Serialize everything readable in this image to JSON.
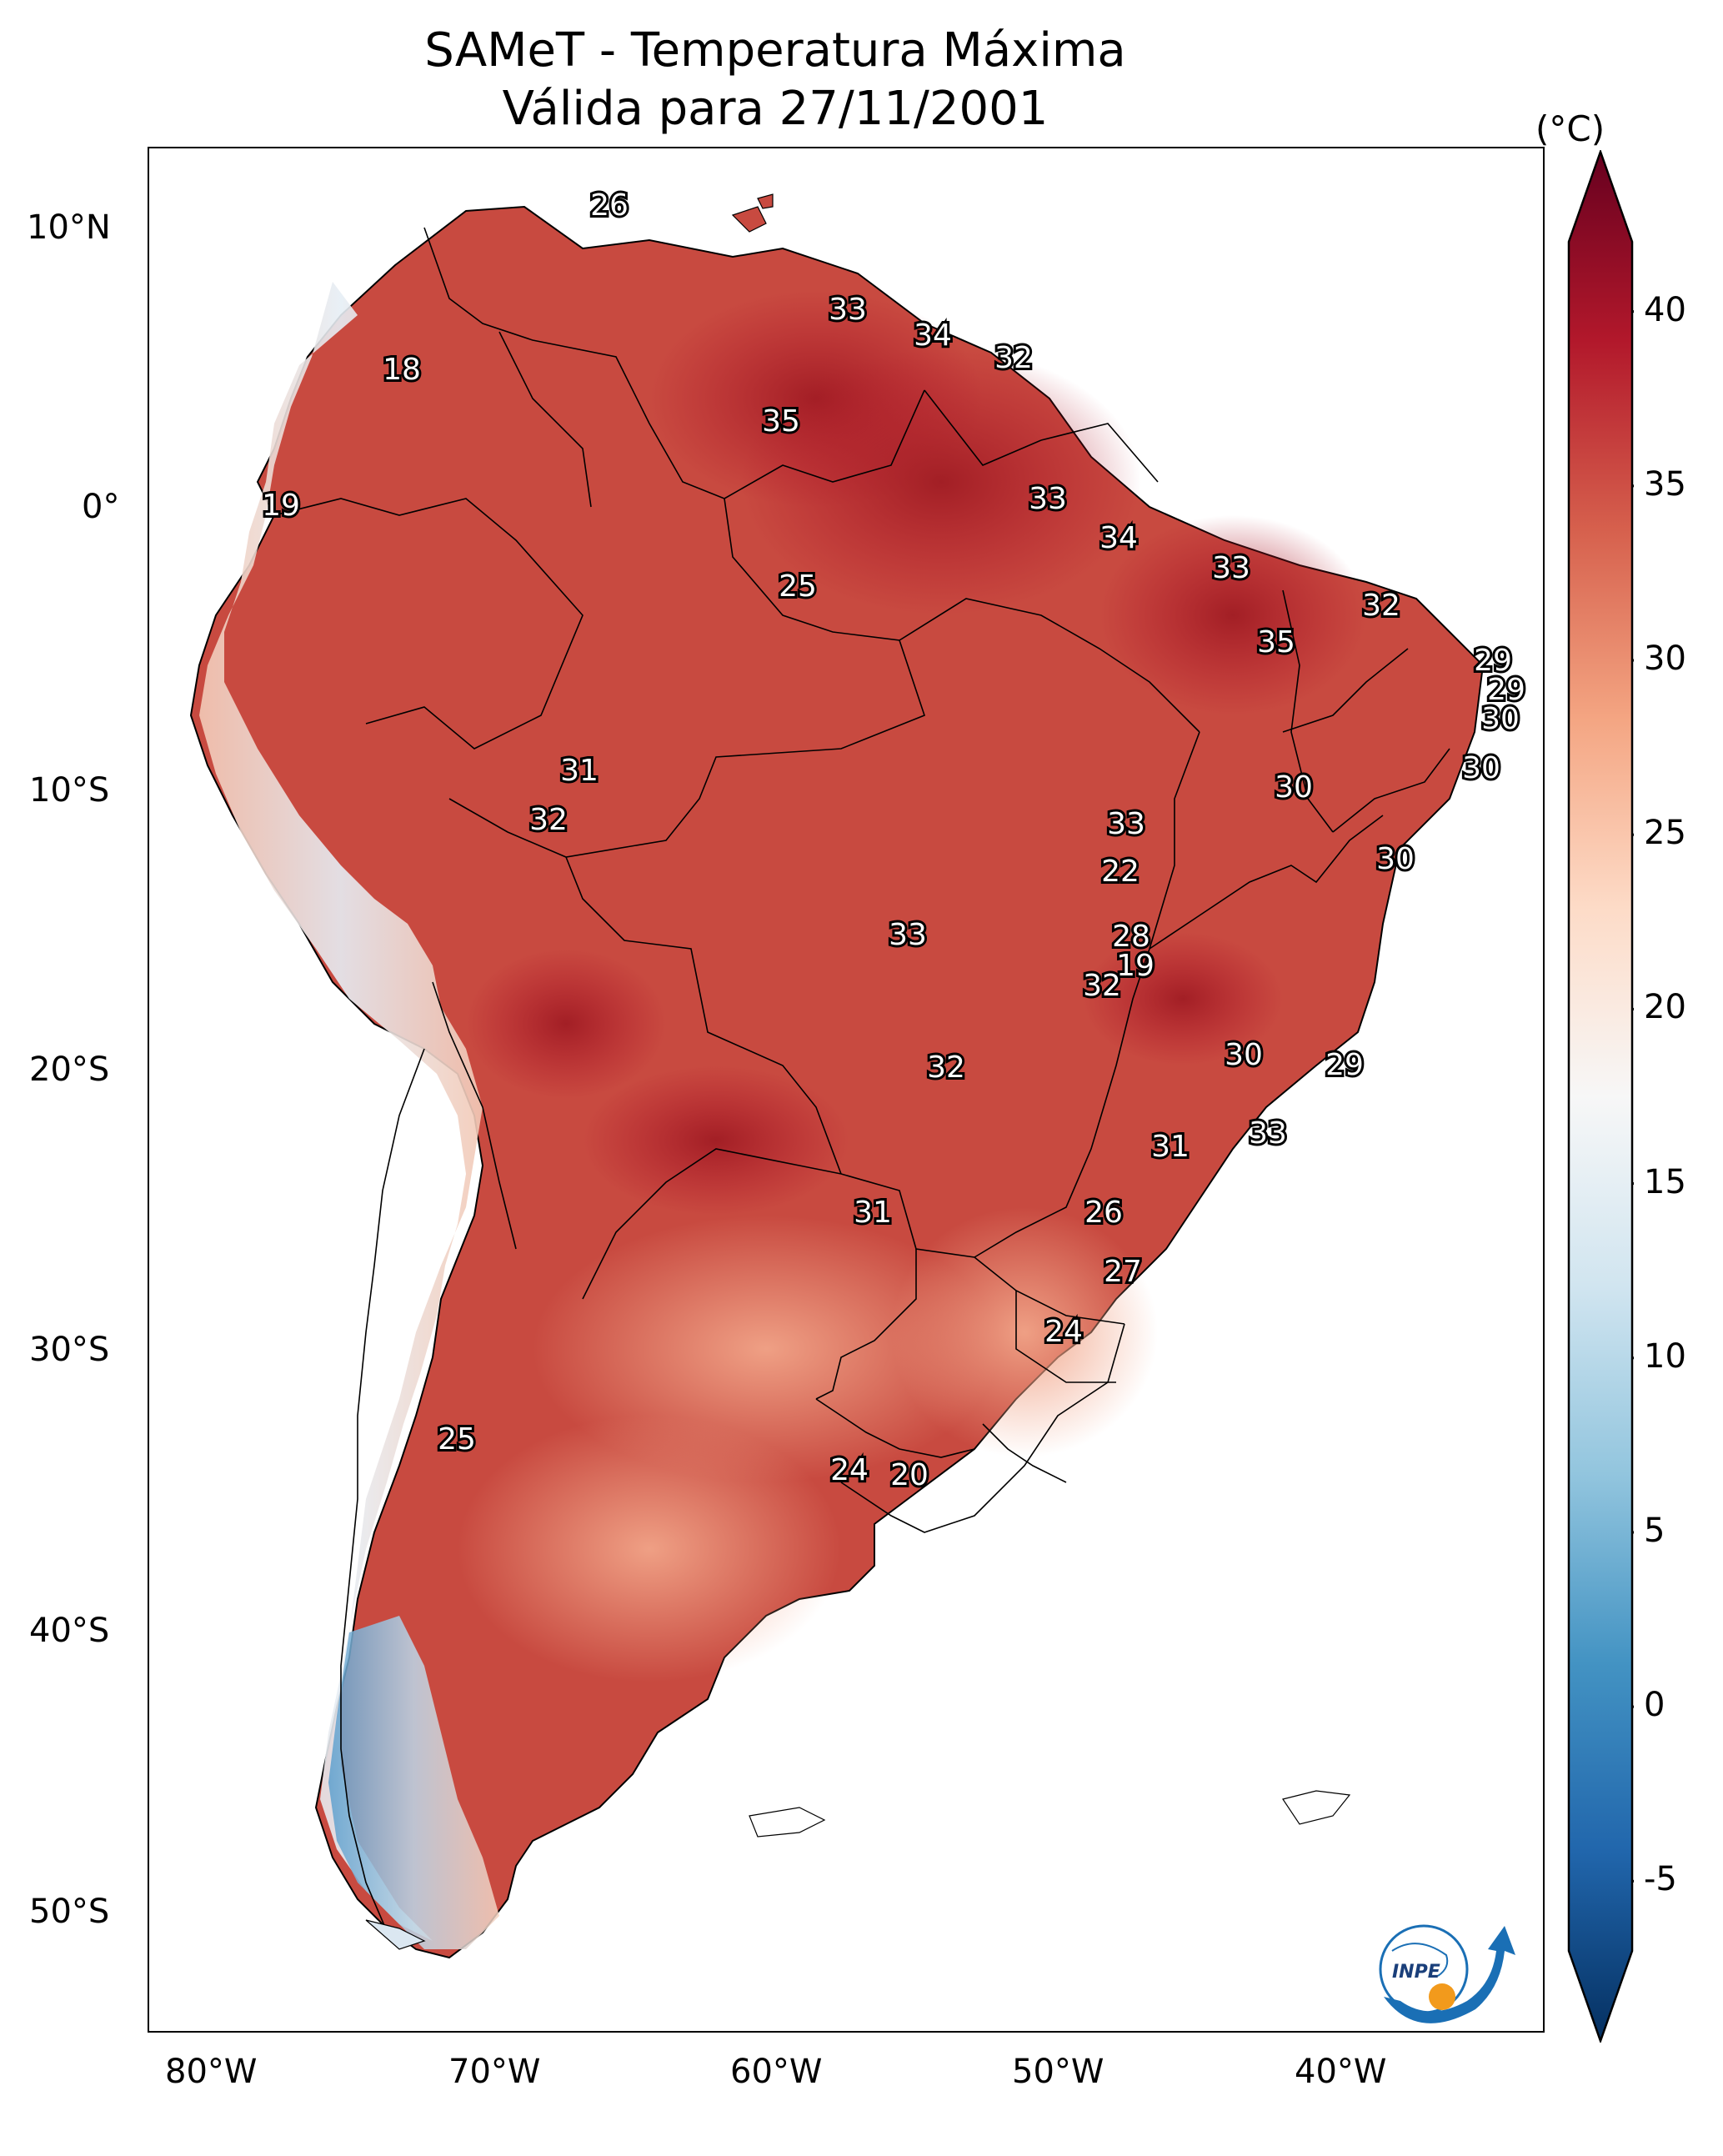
{
  "title": {
    "line1": "SAMeT - Temperatura Máxima",
    "line2": "Válida para 27/11/2001"
  },
  "colorbar": {
    "unit": "(°C)",
    "ticks": [
      "-5",
      "0",
      "5",
      "10",
      "15",
      "20",
      "25",
      "30",
      "35",
      "40"
    ],
    "min": -7,
    "max": 42,
    "colors": [
      "#053061",
      "#2166ac",
      "#4393c3",
      "#92c5de",
      "#d1e5f0",
      "#f7f7f7",
      "#fddbc7",
      "#f4a582",
      "#d6604d",
      "#b2182b",
      "#67001f"
    ]
  },
  "axes": {
    "lon_labels": [
      "80°W",
      "70°W",
      "60°W",
      "50°W",
      "40°W"
    ],
    "lat_labels": [
      "10°N",
      "0°",
      "10°S",
      "20°S",
      "30°S",
      "40°S",
      "50°S"
    ]
  },
  "logo_text": "INPE",
  "map": {
    "land_color": "#c84a40",
    "cool_color": "#e8f0f6",
    "cities": [
      {
        "v": "26"
      },
      {
        "v": "33"
      },
      {
        "v": "34"
      },
      {
        "v": "32"
      },
      {
        "v": "18"
      },
      {
        "v": "35"
      },
      {
        "v": "19"
      },
      {
        "v": "33"
      },
      {
        "v": "34"
      },
      {
        "v": "33"
      },
      {
        "v": "25"
      },
      {
        "v": "32"
      },
      {
        "v": "35"
      },
      {
        "v": "29"
      },
      {
        "v": "29"
      },
      {
        "v": "30"
      },
      {
        "v": "30"
      },
      {
        "v": "30"
      },
      {
        "v": "31"
      },
      {
        "v": "32"
      },
      {
        "v": "33"
      },
      {
        "v": "22"
      },
      {
        "v": "30"
      },
      {
        "v": "33"
      },
      {
        "v": "28"
      },
      {
        "v": "19"
      },
      {
        "v": "32"
      },
      {
        "v": "30"
      },
      {
        "v": "29"
      },
      {
        "v": "32"
      },
      {
        "v": "33"
      },
      {
        "v": "31"
      },
      {
        "v": "31"
      },
      {
        "v": "26"
      },
      {
        "v": "27"
      },
      {
        "v": "24"
      },
      {
        "v": "25"
      },
      {
        "v": "24"
      },
      {
        "v": "20"
      }
    ]
  }
}
